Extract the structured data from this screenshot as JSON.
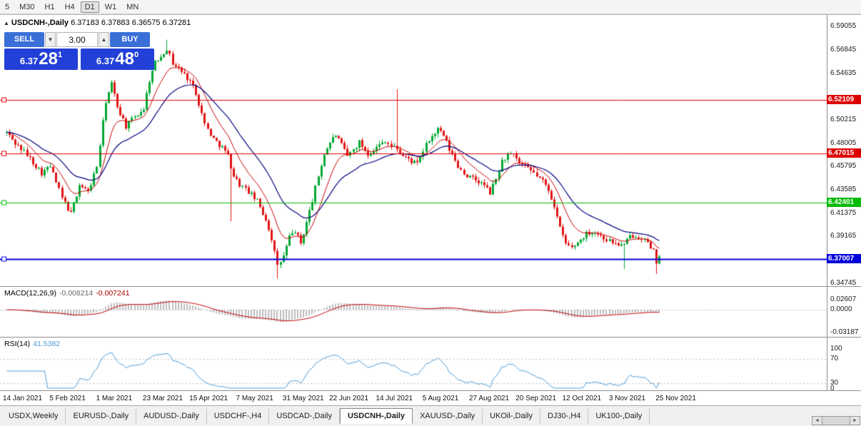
{
  "toolbar": {
    "timeframes": [
      {
        "label": "5",
        "active": false
      },
      {
        "label": "M30",
        "active": false
      },
      {
        "label": "H1",
        "active": false
      },
      {
        "label": "H4",
        "active": false
      },
      {
        "label": "D1",
        "active": true
      },
      {
        "label": "W1",
        "active": false
      },
      {
        "label": "MN",
        "active": false
      }
    ]
  },
  "icons": {
    "collapse": "▲",
    "spin_down": "▼",
    "spin_up": "▲",
    "scroll_left": "◄",
    "scroll_right": "►"
  },
  "chart": {
    "title_symbol": "USDCNH-,Daily",
    "title_ohlc": "6.37183 6.37883 6.36575 6.37281"
  },
  "one_click": {
    "sell_label": "SELL",
    "buy_label": "BUY",
    "volume": "3.00",
    "bid": {
      "small": "6.37",
      "big": "28",
      "sup": "1"
    },
    "ask": {
      "small": "6.37",
      "big": "48",
      "sup": "0"
    }
  },
  "macd": {
    "name": "MACD(12,26,9)",
    "value_main": "-0.008214",
    "value_signal": "-0.007241",
    "axis": [
      "0.02607",
      "0.0000",
      "-0.03187"
    ]
  },
  "rsi": {
    "name": "RSI(14)",
    "value": "41.5382",
    "axis": [
      "100",
      "70",
      "30",
      "0"
    ]
  },
  "tabs": [
    {
      "label": "USDX,Weekly",
      "active": false
    },
    {
      "label": "EURUSD-,Daily",
      "active": false
    },
    {
      "label": "AUDUSD-,Daily",
      "active": false
    },
    {
      "label": "USDCHF-,H4",
      "active": false
    },
    {
      "label": "USDCAD-,Daily",
      "active": false
    },
    {
      "label": "USDCNH-,Daily",
      "active": true
    },
    {
      "label": "XAUUSD-,Daily",
      "active": false
    },
    {
      "label": "UKOil-,Daily",
      "active": false
    },
    {
      "label": "DJ30-,H4",
      "active": false
    },
    {
      "label": "UK100-,Daily",
      "active": false
    }
  ],
  "colors": {
    "bull": "#00A832",
    "bear": "#E11414",
    "ma_fast": "#C80000",
    "ma_slow": "#000080",
    "macd_hist": "#BEBEBE",
    "macd_signal": "#C00000",
    "rsi": "#4F9BD5"
  },
  "chart_data": {
    "type": "candlestick",
    "symbol": "USDCNH-",
    "timeframe": "Daily",
    "ohlc_display": {
      "open": "6.37183",
      "high": "6.37883",
      "low": "6.36575",
      "close": "6.37281"
    },
    "last_close": 6.3728,
    "price_axis": {
      "max": 6.6008,
      "min": 6.3446,
      "ticks": [
        "6.59055",
        "6.56845",
        "6.54635",
        "6.50215",
        "6.48005",
        "6.45795",
        "6.43585",
        "6.41375",
        "6.39165",
        "6.34745"
      ]
    },
    "hlines": [
      {
        "price": 6.52109,
        "label": "6.52109",
        "color": "#DD0000",
        "width": 1
      },
      {
        "price": 6.47015,
        "label": "6.47015",
        "color": "#DD0000",
        "width": 1
      },
      {
        "price": 6.42401,
        "label": "6.42401",
        "color": "#00BB00",
        "width": 1
      },
      {
        "price": 6.37007,
        "label": "6.37007",
        "color": "#0000DD",
        "width": 2
      }
    ],
    "candles_count": 225,
    "price_anchors": [
      [
        0,
        6.49
      ],
      [
        3,
        6.48
      ],
      [
        6,
        6.472
      ],
      [
        9,
        6.462
      ],
      [
        12,
        6.452
      ],
      [
        15,
        6.458
      ],
      [
        19,
        6.428
      ],
      [
        22,
        6.413
      ],
      [
        25,
        6.441
      ],
      [
        28,
        6.434
      ],
      [
        31,
        6.458
      ],
      [
        34,
        6.52
      ],
      [
        36,
        6.536
      ],
      [
        38,
        6.515
      ],
      [
        41,
        6.496
      ],
      [
        44,
        6.505
      ],
      [
        47,
        6.513
      ],
      [
        49,
        6.54
      ],
      [
        51,
        6.556
      ],
      [
        55,
        6.57
      ],
      [
        57,
        6.556
      ],
      [
        60,
        6.548
      ],
      [
        63,
        6.539
      ],
      [
        65,
        6.528
      ],
      [
        68,
        6.498
      ],
      [
        71,
        6.484
      ],
      [
        74,
        6.476
      ],
      [
        76,
        6.468
      ],
      [
        78,
        6.449
      ],
      [
        80,
        6.441
      ],
      [
        83,
        6.434
      ],
      [
        86,
        6.425
      ],
      [
        89,
        6.408
      ],
      [
        91,
        6.39
      ],
      [
        93,
        6.363
      ],
      [
        95,
        6.373
      ],
      [
        97,
        6.391
      ],
      [
        99,
        6.397
      ],
      [
        101,
        6.385
      ],
      [
        103,
        6.405
      ],
      [
        105,
        6.426
      ],
      [
        107,
        6.449
      ],
      [
        109,
        6.47
      ],
      [
        111,
        6.481
      ],
      [
        113,
        6.488
      ],
      [
        115,
        6.478
      ],
      [
        117,
        6.468
      ],
      [
        119,
        6.474
      ],
      [
        121,
        6.481
      ],
      [
        124,
        6.47
      ],
      [
        127,
        6.476
      ],
      [
        130,
        6.483
      ],
      [
        132,
        6.477
      ],
      [
        134,
        6.475
      ],
      [
        136,
        6.468
      ],
      [
        139,
        6.463
      ],
      [
        141,
        6.46
      ],
      [
        143,
        6.473
      ],
      [
        145,
        6.483
      ],
      [
        148,
        6.493
      ],
      [
        150,
        6.487
      ],
      [
        152,
        6.474
      ],
      [
        155,
        6.458
      ],
      [
        158,
        6.449
      ],
      [
        161,
        6.445
      ],
      [
        164,
        6.44
      ],
      [
        166,
        6.433
      ],
      [
        168,
        6.446
      ],
      [
        170,
        6.463
      ],
      [
        172,
        6.469
      ],
      [
        174,
        6.468
      ],
      [
        176,
        6.461
      ],
      [
        178,
        6.457
      ],
      [
        181,
        6.452
      ],
      [
        184,
        6.444
      ],
      [
        186,
        6.436
      ],
      [
        188,
        6.421
      ],
      [
        190,
        6.399
      ],
      [
        192,
        6.385
      ],
      [
        194,
        6.381
      ],
      [
        196,
        6.386
      ],
      [
        198,
        6.392
      ],
      [
        200,
        6.396
      ],
      [
        202,
        6.396
      ],
      [
        204,
        6.392
      ],
      [
        206,
        6.389
      ],
      [
        208,
        6.386
      ],
      [
        210,
        6.384
      ],
      [
        212,
        6.383
      ],
      [
        214,
        6.392
      ],
      [
        216,
        6.393
      ],
      [
        218,
        6.391
      ],
      [
        220,
        6.385
      ],
      [
        221,
        6.379
      ],
      [
        222,
        6.377
      ],
      [
        223,
        6.366
      ],
      [
        224,
        6.3728
      ]
    ],
    "spikes": [
      {
        "t": 55,
        "high": 6.578
      },
      {
        "t": 77,
        "low": 6.406
      },
      {
        "t": 93,
        "low": 6.352
      },
      {
        "t": 134,
        "high": 6.531
      },
      {
        "t": 212,
        "low": 6.361
      },
      {
        "t": 223,
        "low": 6.356
      }
    ],
    "moving_averages": [
      {
        "period": 10,
        "color_key": "ma_fast"
      },
      {
        "period": 24,
        "color_key": "ma_slow"
      }
    ],
    "macd_params": [
      12,
      26,
      9
    ],
    "rsi_period": 14,
    "date_axis": [
      "14 Jan 2021",
      "5 Feb 2021",
      "1 Mar 2021",
      "23 Mar 2021",
      "15 Apr 2021",
      "7 May 2021",
      "31 May 2021",
      "22 Jun 2021",
      "14 Jul 2021",
      "5 Aug 2021",
      "27 Aug 2021",
      "20 Sep 2021",
      "12 Oct 2021",
      "3 Nov 2021",
      "25 Nov 2021"
    ]
  }
}
